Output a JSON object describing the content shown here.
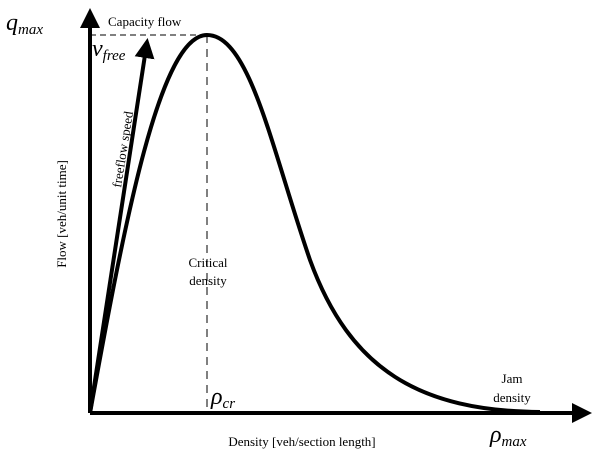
{
  "diagram": {
    "y_axis": {
      "symbol": "q",
      "subscript": "max",
      "label": "Flow  [veh/unit time]"
    },
    "x_axis": {
      "symbol": "ρ",
      "subscript": "max",
      "label": "Density  [veh/section length]"
    },
    "capacity": "Capacity flow",
    "free_speed": {
      "symbol": "v",
      "subscript": "free",
      "label": "freeflow speed"
    },
    "critical": {
      "line1": "Critical",
      "line2": "density",
      "symbol": "ρ",
      "subscript": "cr"
    },
    "jam": {
      "line1": "Jam",
      "line2": "density"
    }
  }
}
